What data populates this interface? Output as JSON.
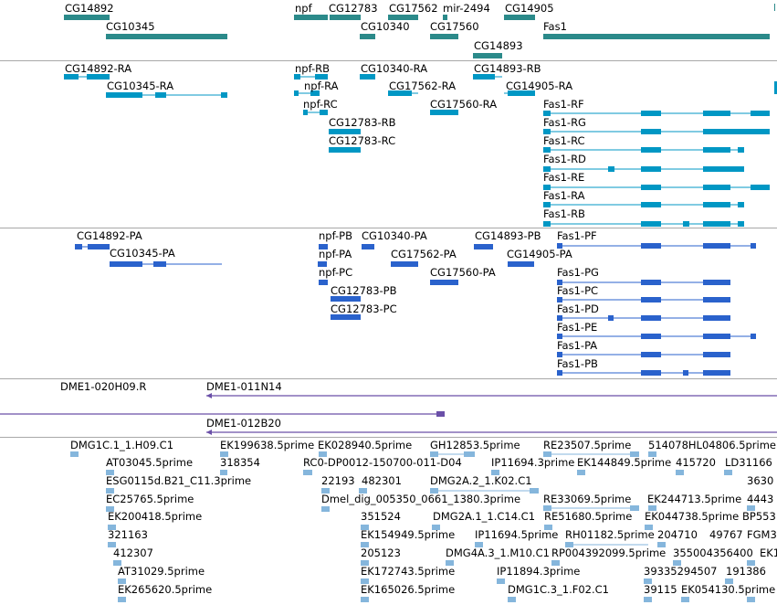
{
  "colors": {
    "gene": "#2b8a8a",
    "transcript": "#0097c4",
    "protein": "#2a62cc",
    "clone": "#6a4fa8",
    "est": "#85b6dc",
    "divider": "#a8a8a8"
  },
  "tracks": {
    "genes": {
      "labels": [
        "CG14892",
        "CG10345",
        "npf",
        "CG12783",
        "CG17562",
        "mir-2494",
        "CG14905",
        "CG10340",
        "CG17560",
        "CG14893",
        "Fas1"
      ]
    },
    "transcripts": {
      "labels": [
        "CG14892-RA",
        "CG10345-RA",
        "npf-RB",
        "npf-RA",
        "npf-RC",
        "CG10340-RA",
        "CG14893-RB",
        "CG17562-RA",
        "CG14905-RA",
        "CG17560-RA",
        "CG12783-RB",
        "CG12783-RC",
        "Fas1-RF",
        "Fas1-RG",
        "Fas1-RC",
        "Fas1-RD",
        "Fas1-RE",
        "Fas1-RA",
        "Fas1-RB"
      ]
    },
    "proteins": {
      "labels": [
        "CG14892-PA",
        "CG10345-PA",
        "npf-PB",
        "npf-PA",
        "npf-PC",
        "CG12783-PB",
        "CG12783-PC",
        "CG10340-PA",
        "CG17562-PA",
        "CG17560-PA",
        "CG14893-PB",
        "CG14905-PA",
        "Fas1-PF",
        "Fas1-PG",
        "Fas1-PC",
        "Fas1-PD",
        "Fas1-PE",
        "Fas1-PA",
        "Fas1-PB"
      ]
    },
    "clones": {
      "labels": [
        "DME1-020H09.R",
        "DME1-011N14",
        "DME1-012B20"
      ]
    },
    "ests": {
      "labels": [
        "DMG1C.1_1.H09.C1",
        "EK199638.5prime",
        "EK028940.5prime",
        "GH12853.5prime",
        "RE23507.5prime",
        "514078HL04806.5prime",
        "AT03045.5prime",
        "318354",
        "RC0-DP0012-150700-011-D04",
        "IP11694.3prime",
        "EK144849.5prime",
        "415720",
        "LD31166",
        "ESG0115d.B21_C11.3prime",
        "22193",
        "482301",
        "DMG2A.2_1.K02.C1",
        "3630",
        "EC25765.5prime",
        "Dmel_dig_005350_0661_1380.3prime",
        "RE33069.5prime",
        "EK244713.5prime",
        "4443",
        "EK200418.5prime",
        "351524",
        "DMG2A.1_1.C14.C1",
        "RE51680.5prime",
        "EK044738.5prime",
        "BP553",
        "321163",
        "EK154949.5prime",
        "IP11694.5prime",
        "RH01182.5prime",
        "204710",
        "49767",
        "FGM3",
        "412307",
        "205123",
        "DMG4A.3_1.M10.C1",
        "RP004392099.5prime",
        "355004356400",
        "EK1",
        "AT31029.5prime",
        "EK172743.5prime",
        "IP11894.3prime",
        "39335294507",
        "191386",
        "EK265620.5prime",
        "EK165026.5prime",
        "DMG1C.3_1.F02.C1",
        "39115",
        "EK054130.5prime"
      ]
    }
  }
}
